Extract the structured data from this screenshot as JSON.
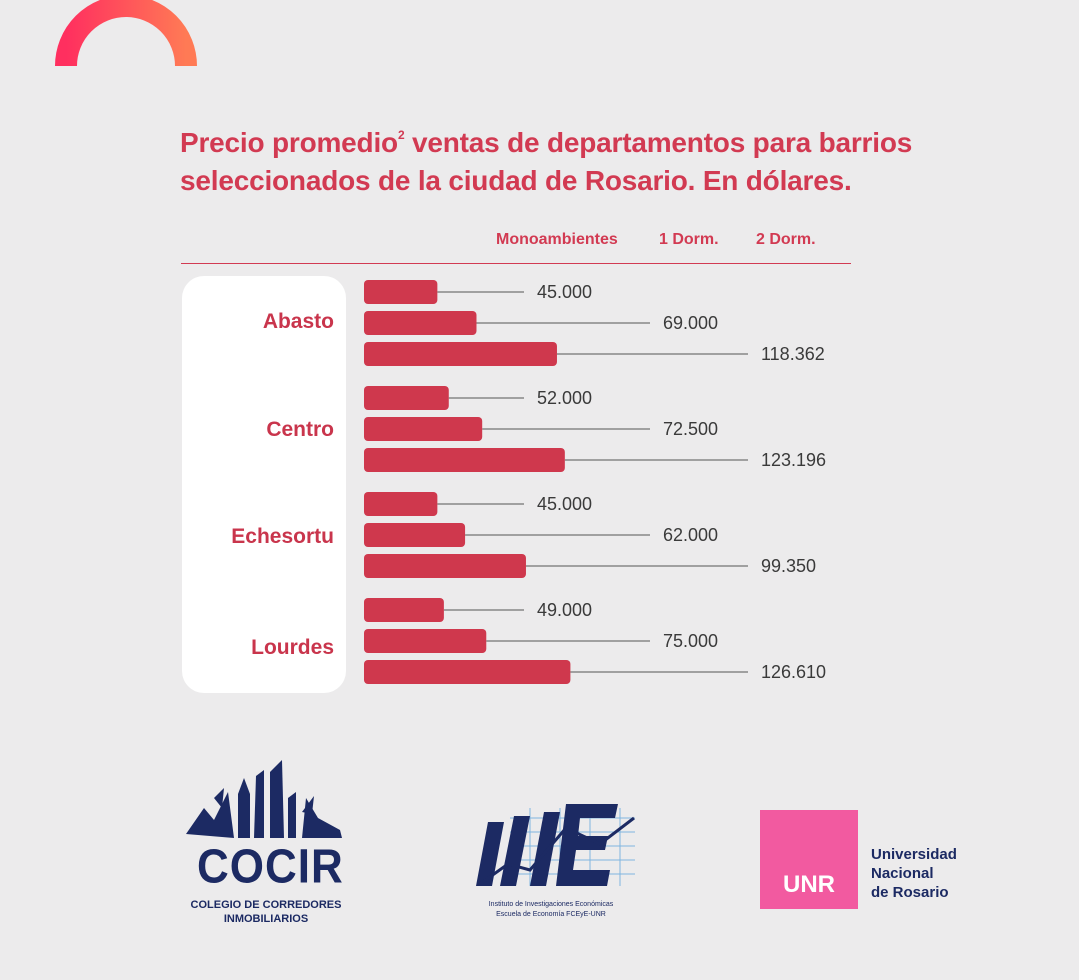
{
  "title": {
    "line1_a": "Precio promedio",
    "sup": "2",
    "line1_b": " ventas de departamentos para barrios",
    "line2": "seleccionados de la ciudad de Rosario. En dólares."
  },
  "colors": {
    "accent": "#d23a52",
    "bar": "#cf384d",
    "background": "#ecebec",
    "arc_start": "#ff2f5f",
    "arc_end": "#ff7a55"
  },
  "chart_data": {
    "type": "bar",
    "orientation": "horizontal",
    "categories": [
      "Abasto",
      "Centro",
      "Echesortu",
      "Lourdes"
    ],
    "series": [
      {
        "name": "Monoambientes",
        "values": [
          45000,
          52000,
          45000,
          49000
        ]
      },
      {
        "name": "1 Dorm.",
        "values": [
          69000,
          72500,
          62000,
          75000
        ]
      },
      {
        "name": "2 Dorm.",
        "values": [
          118362,
          123196,
          99350,
          126610
        ]
      }
    ],
    "data_labels": [
      [
        "45.000",
        "69.000",
        "118.362"
      ],
      [
        "52.000",
        "72.500",
        "123.196"
      ],
      [
        "45.000",
        "62.000",
        "99.350"
      ],
      [
        "49.000",
        "75.000",
        "126.610"
      ]
    ],
    "legend_placement": "top",
    "grid": false
  },
  "logos": {
    "cocir": {
      "name": "COCIR",
      "line1": "COLEGIO DE CORREDORES",
      "line2": "INMOBILIARIOS"
    },
    "iie": {
      "line1": "Instituto de Investigaciones Económicas",
      "line2": "Escuela de Economía FCEyE-UNR"
    },
    "unr": {
      "abbr": "UNR",
      "line1": "Universidad",
      "line2": "Nacional",
      "line3": "de Rosario"
    }
  }
}
